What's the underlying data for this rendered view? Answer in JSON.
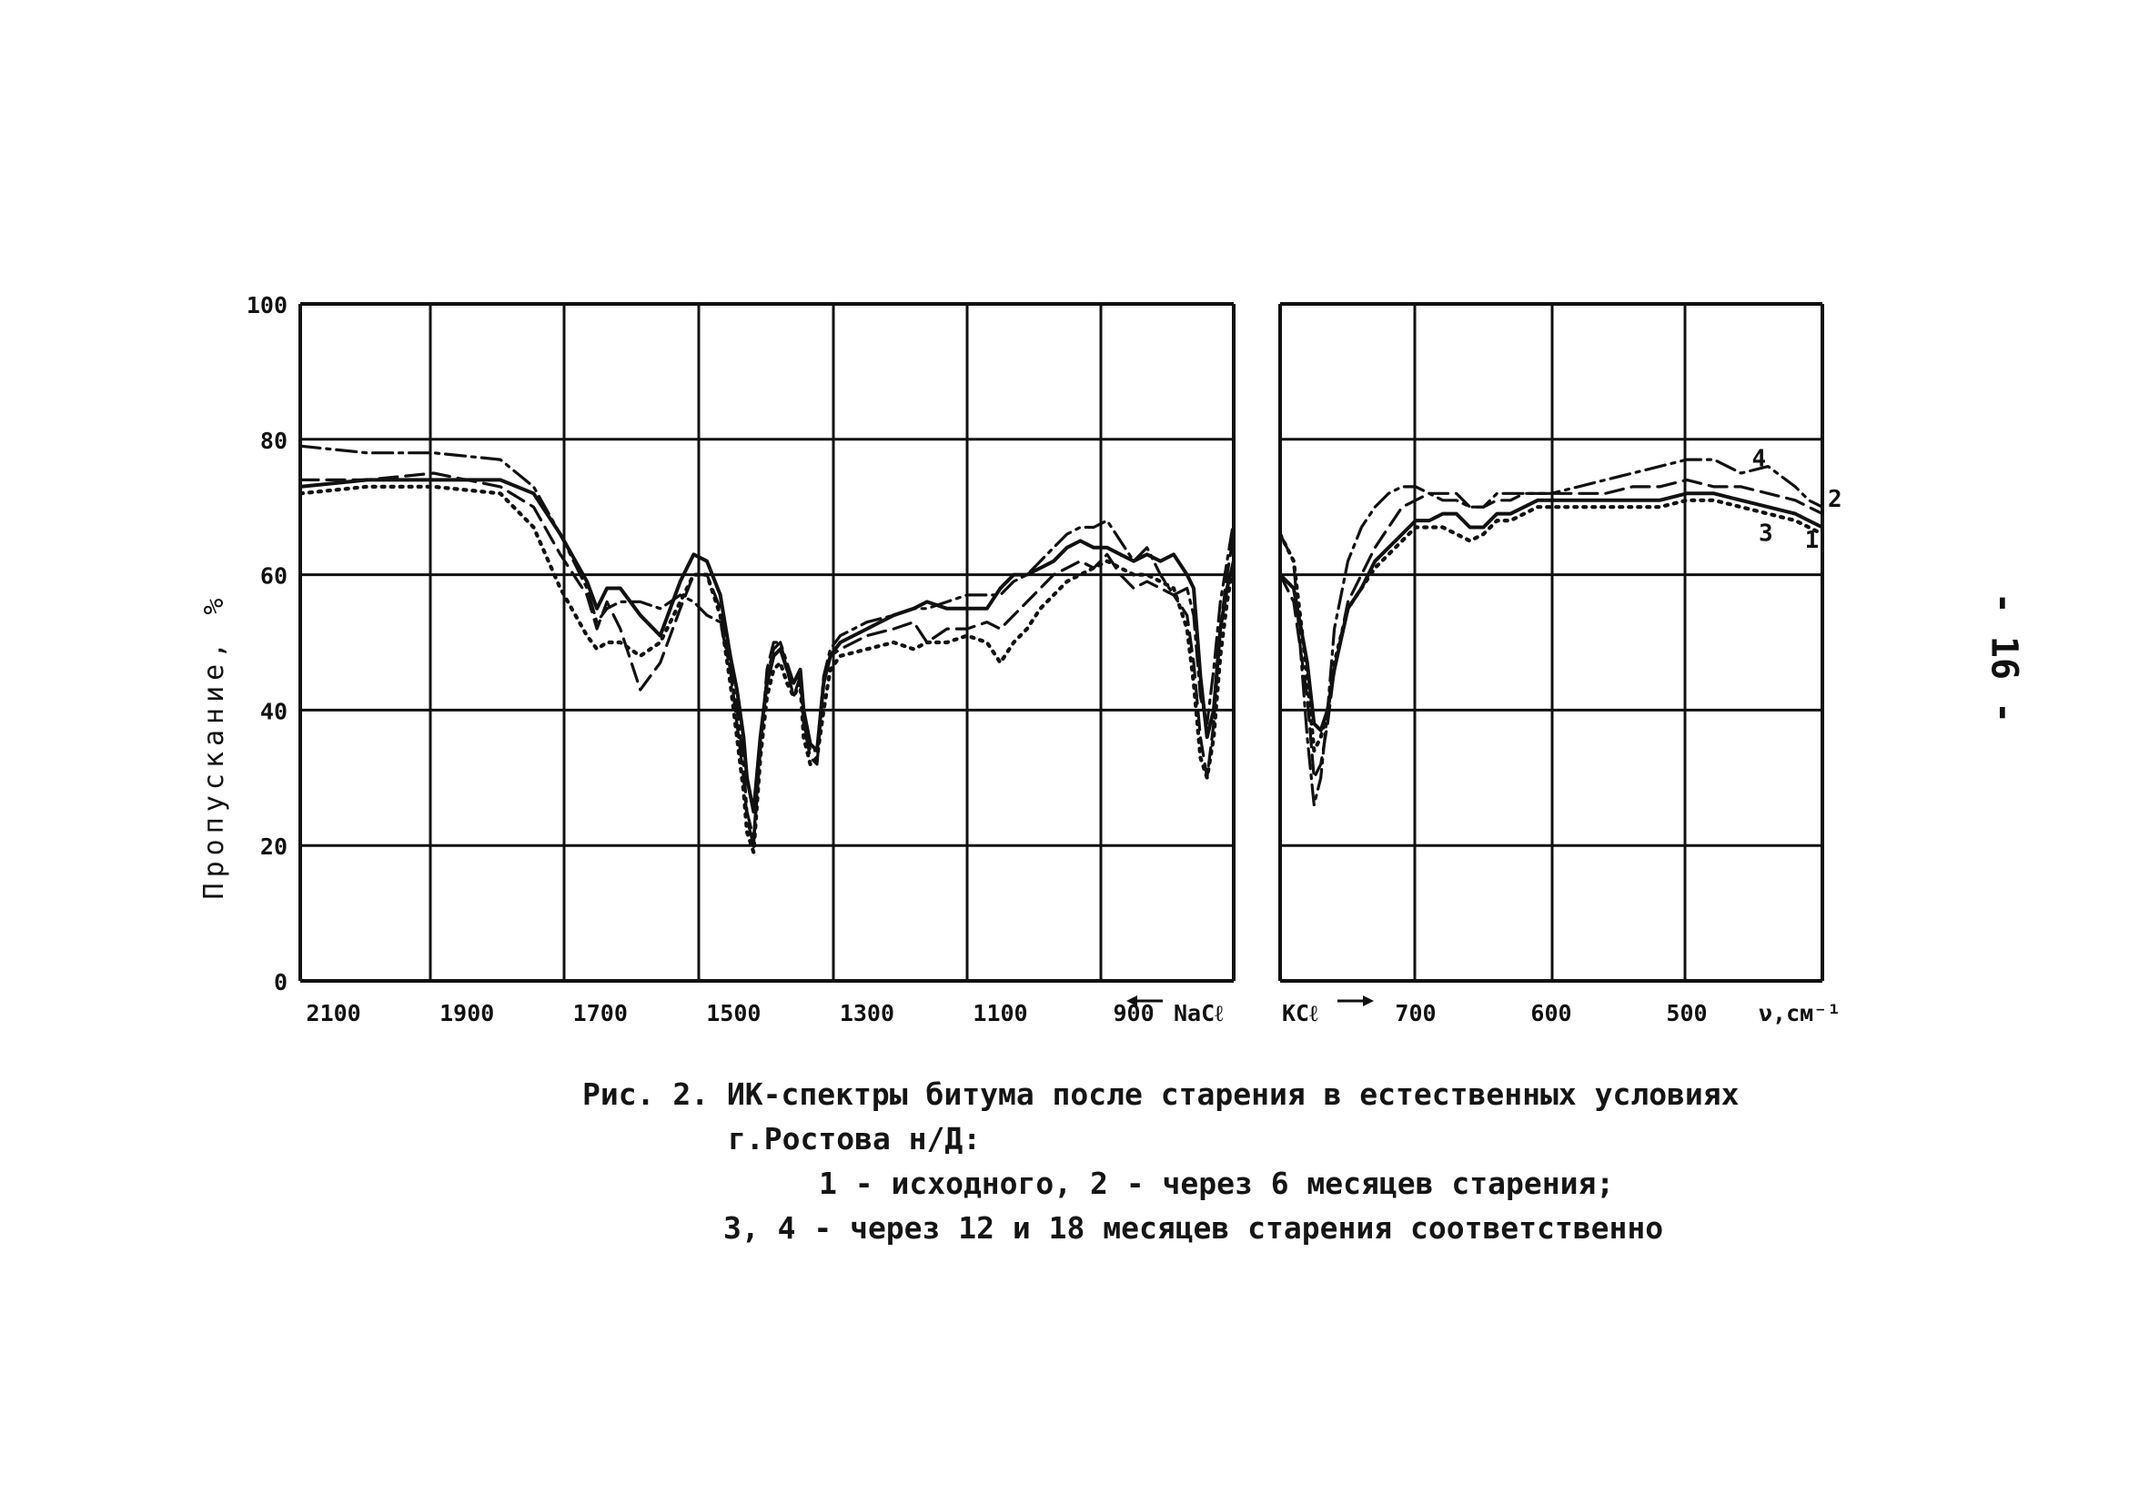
{
  "chart_data": [
    {
      "type": "line",
      "ylabel": "Пропускание, %",
      "xlabel": "",
      "xlim": [
        2150,
        750
      ],
      "ylim": [
        0,
        100
      ],
      "x_ticks": [
        2100,
        1900,
        1700,
        1500,
        1300,
        1100,
        900
      ],
      "x_tick_labels": [
        "2100",
        "1900",
        "1700",
        "1500",
        "1300",
        "1100",
        "900"
      ],
      "y_ticks": [
        0,
        20,
        40,
        60,
        80,
        100
      ],
      "y_tick_labels": [
        "0",
        "20",
        "40",
        "60",
        "80",
        "100"
      ],
      "annotation": "NaCℓ",
      "grid": true,
      "series": [
        {
          "name": "1",
          "style": "solid",
          "x": [
            2150,
            2050,
            1950,
            1850,
            1800,
            1760,
            1720,
            1705,
            1690,
            1670,
            1640,
            1610,
            1580,
            1560,
            1540,
            1520,
            1505,
            1495,
            1485,
            1480,
            1470,
            1460,
            1450,
            1440,
            1430,
            1420,
            1410,
            1400,
            1395,
            1385,
            1375,
            1365,
            1355,
            1340,
            1300,
            1260,
            1230,
            1210,
            1180,
            1150,
            1120,
            1100,
            1080,
            1060,
            1040,
            1020,
            1000,
            980,
            960,
            940,
            920,
            900,
            880,
            860,
            840,
            820,
            810,
            800,
            790,
            780,
            770,
            760,
            750
          ],
          "y": [
            73,
            74,
            74,
            74,
            72,
            66,
            59,
            55,
            58,
            58,
            54,
            51,
            59,
            63,
            62,
            57,
            48,
            43,
            36,
            30,
            25,
            36,
            44,
            48,
            49,
            46,
            44,
            46,
            40,
            35,
            34,
            44,
            48,
            50,
            52,
            54,
            55,
            56,
            55,
            55,
            55,
            58,
            60,
            60,
            61,
            62,
            64,
            65,
            64,
            64,
            63,
            62,
            63,
            62,
            63,
            60,
            58,
            45,
            36,
            40,
            52,
            58,
            62
          ]
        },
        {
          "name": "2",
          "style": "dashed",
          "x": [
            2150,
            2050,
            1950,
            1850,
            1800,
            1760,
            1720,
            1705,
            1690,
            1670,
            1640,
            1610,
            1580,
            1560,
            1540,
            1520,
            1505,
            1495,
            1485,
            1480,
            1470,
            1460,
            1450,
            1440,
            1430,
            1420,
            1410,
            1400,
            1395,
            1385,
            1375,
            1365,
            1355,
            1340,
            1300,
            1260,
            1230,
            1210,
            1180,
            1150,
            1120,
            1100,
            1080,
            1060,
            1040,
            1020,
            1000,
            980,
            960,
            940,
            920,
            900,
            880,
            860,
            840,
            820,
            810,
            800,
            790,
            780,
            770,
            760,
            750
          ],
          "y": [
            74,
            74,
            75,
            73,
            70,
            63,
            57,
            52,
            56,
            52,
            43,
            47,
            55,
            60,
            60,
            55,
            46,
            38,
            30,
            24,
            20,
            34,
            46,
            50,
            50,
            46,
            42,
            45,
            38,
            33,
            32,
            44,
            48,
            49,
            51,
            52,
            53,
            50,
            52,
            52,
            53,
            52,
            54,
            56,
            58,
            60,
            61,
            62,
            61,
            63,
            60,
            58,
            59,
            58,
            57,
            54,
            47,
            36,
            30,
            38,
            52,
            60,
            66
          ]
        },
        {
          "name": "3",
          "style": "dotted",
          "x": [
            2150,
            2050,
            1950,
            1850,
            1800,
            1760,
            1720,
            1705,
            1690,
            1670,
            1640,
            1610,
            1580,
            1560,
            1540,
            1520,
            1505,
            1495,
            1485,
            1480,
            1470,
            1460,
            1450,
            1440,
            1430,
            1420,
            1410,
            1400,
            1395,
            1385,
            1375,
            1365,
            1355,
            1340,
            1300,
            1260,
            1230,
            1210,
            1180,
            1150,
            1120,
            1100,
            1080,
            1060,
            1040,
            1020,
            1000,
            980,
            960,
            940,
            920,
            900,
            880,
            860,
            840,
            820,
            810,
            800,
            790,
            780,
            770,
            760,
            750
          ],
          "y": [
            72,
            73,
            73,
            72,
            67,
            58,
            51,
            49,
            50,
            50,
            48,
            50,
            56,
            60,
            60,
            54,
            44,
            36,
            28,
            22,
            19,
            33,
            42,
            46,
            47,
            44,
            42,
            44,
            36,
            32,
            33,
            40,
            46,
            48,
            49,
            50,
            49,
            50,
            50,
            51,
            50,
            47,
            50,
            52,
            55,
            57,
            59,
            60,
            61,
            62,
            61,
            60,
            60,
            59,
            58,
            52,
            44,
            33,
            30,
            36,
            48,
            56,
            62
          ]
        },
        {
          "name": "4",
          "style": "dashdot",
          "x": [
            2150,
            2050,
            1950,
            1850,
            1800,
            1760,
            1720,
            1705,
            1690,
            1670,
            1640,
            1610,
            1580,
            1560,
            1540,
            1520,
            1505,
            1495,
            1485,
            1480,
            1470,
            1460,
            1450,
            1440,
            1430,
            1420,
            1410,
            1400,
            1395,
            1385,
            1375,
            1365,
            1355,
            1340,
            1300,
            1260,
            1230,
            1210,
            1180,
            1150,
            1120,
            1100,
            1080,
            1060,
            1040,
            1020,
            1000,
            980,
            960,
            940,
            920,
            900,
            880,
            860,
            840,
            820,
            810,
            800,
            790,
            780,
            770,
            760,
            750
          ],
          "y": [
            79,
            78,
            78,
            77,
            73,
            66,
            58,
            53,
            55,
            56,
            56,
            55,
            57,
            56,
            54,
            53,
            46,
            40,
            32,
            25,
            21,
            35,
            45,
            49,
            50,
            47,
            44,
            45,
            38,
            34,
            34,
            45,
            49,
            51,
            53,
            54,
            55,
            55,
            56,
            57,
            57,
            57,
            59,
            60,
            62,
            64,
            66,
            67,
            67,
            68,
            65,
            62,
            64,
            60,
            57,
            58,
            54,
            42,
            38,
            46,
            56,
            62,
            68
          ]
        }
      ]
    },
    {
      "type": "line",
      "xlabel": "ν,см⁻¹",
      "ylabel": "",
      "xlim": [
        800,
        400
      ],
      "ylim": [
        0,
        100
      ],
      "x_ticks": [
        700,
        600,
        500
      ],
      "x_tick_labels": [
        "700",
        "600",
        "500"
      ],
      "annotation": "KCℓ",
      "grid": true,
      "series": [
        {
          "name": "1",
          "style": "solid",
          "x": [
            800,
            790,
            780,
            775,
            770,
            765,
            760,
            750,
            740,
            730,
            720,
            710,
            700,
            690,
            680,
            670,
            660,
            650,
            640,
            630,
            620,
            610,
            600,
            580,
            560,
            540,
            520,
            500,
            480,
            460,
            440,
            420,
            410,
            400
          ],
          "y": [
            60,
            58,
            47,
            38,
            37,
            40,
            46,
            55,
            58,
            62,
            64,
            66,
            68,
            68,
            69,
            69,
            67,
            67,
            69,
            69,
            70,
            71,
            71,
            71,
            71,
            71,
            71,
            72,
            72,
            71,
            70,
            69,
            68,
            67
          ]
        },
        {
          "name": "2",
          "style": "dashed",
          "x": [
            800,
            790,
            780,
            775,
            770,
            765,
            760,
            750,
            740,
            730,
            720,
            710,
            700,
            690,
            680,
            670,
            660,
            650,
            640,
            630,
            620,
            610,
            600,
            580,
            560,
            540,
            520,
            500,
            480,
            460,
            440,
            420,
            410,
            400
          ],
          "y": [
            60,
            56,
            42,
            30,
            32,
            38,
            46,
            56,
            60,
            64,
            67,
            70,
            71,
            72,
            72,
            72,
            70,
            70,
            71,
            71,
            72,
            72,
            72,
            72,
            72,
            73,
            73,
            74,
            73,
            73,
            72,
            71,
            70,
            69
          ]
        },
        {
          "name": "3",
          "style": "dotted",
          "x": [
            800,
            790,
            780,
            775,
            770,
            765,
            760,
            750,
            740,
            730,
            720,
            710,
            700,
            690,
            680,
            670,
            660,
            650,
            640,
            630,
            620,
            610,
            600,
            580,
            560,
            540,
            520,
            500,
            480,
            460,
            440,
            420,
            410,
            400
          ],
          "y": [
            66,
            62,
            45,
            34,
            36,
            40,
            47,
            55,
            58,
            61,
            63,
            65,
            67,
            67,
            67,
            66,
            65,
            66,
            68,
            68,
            69,
            70,
            70,
            70,
            70,
            70,
            70,
            71,
            71,
            70,
            69,
            68,
            67,
            66
          ]
        },
        {
          "name": "4",
          "style": "dashdot",
          "x": [
            800,
            790,
            780,
            775,
            770,
            765,
            760,
            750,
            740,
            730,
            720,
            710,
            700,
            690,
            680,
            670,
            660,
            650,
            640,
            630,
            620,
            610,
            600,
            580,
            560,
            540,
            520,
            500,
            480,
            460,
            440,
            420,
            410,
            400
          ],
          "y": [
            66,
            62,
            36,
            26,
            30,
            40,
            52,
            62,
            67,
            70,
            72,
            73,
            73,
            72,
            71,
            71,
            70,
            70,
            72,
            72,
            72,
            72,
            72,
            73,
            74,
            75,
            76,
            77,
            77,
            75,
            76,
            73,
            71,
            70
          ]
        }
      ],
      "curve_labels": [
        {
          "text": "4",
          "x": 452,
          "y": 76
        },
        {
          "text": "2",
          "x": 396,
          "y": 70
        },
        {
          "text": "3",
          "x": 447,
          "y": 65
        },
        {
          "text": "1",
          "x": 413,
          "y": 64
        }
      ]
    }
  ],
  "caption": {
    "line1": "Рис. 2. ИК-спектры битума после старения в естественных условиях",
    "line2": "г.Ростова н/Д:",
    "line3": "1 - исходного, 2 - через 6 месяцев старения;",
    "line4": "3, 4 - через 12 и 18 месяцев старения соответственно"
  },
  "page_number": "- 16 -"
}
